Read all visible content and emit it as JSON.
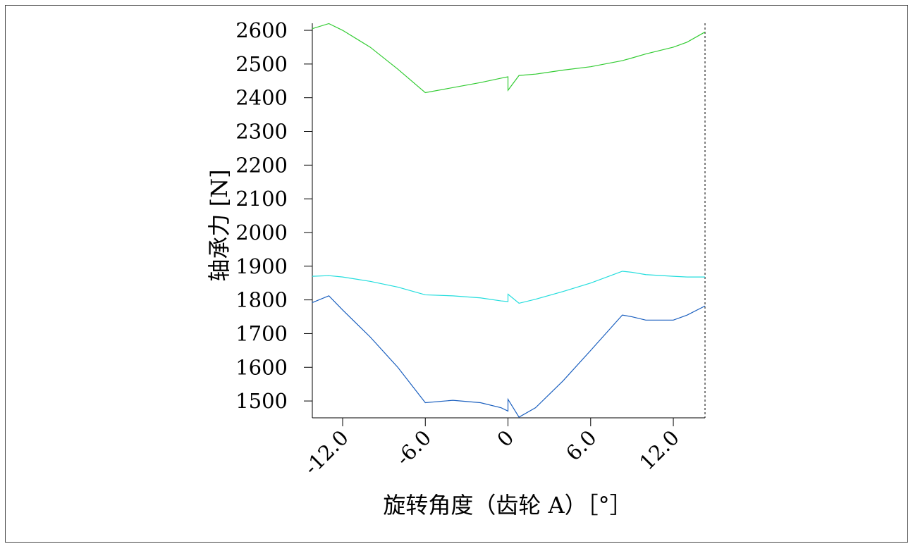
{
  "chart_data": {
    "type": "line",
    "x_label": "旋转角度（齿轮 A）［°］",
    "y_label": "轴承力 [N]",
    "x": [
      -14.2,
      -13,
      -12,
      -10,
      -8,
      -6,
      -4,
      -2,
      -0.5,
      0,
      0,
      0.8,
      2,
      4,
      6,
      8.3,
      9,
      10,
      12,
      13,
      14.3
    ],
    "series": [
      {
        "color": "#33cc33",
        "values": [
          2605,
          2620,
          2600,
          2550,
          2485,
          2415,
          2430,
          2445,
          2458,
          2462,
          2422,
          2466,
          2470,
          2482,
          2492,
          2510,
          2518,
          2530,
          2550,
          2565,
          2595
        ]
      },
      {
        "color": "#22dddd",
        "values": [
          1870,
          1872,
          1868,
          1855,
          1838,
          1815,
          1812,
          1806,
          1797,
          1795,
          1817,
          1790,
          1802,
          1825,
          1850,
          1885,
          1882,
          1875,
          1870,
          1868,
          1868
        ]
      },
      {
        "color": "#1a5fbf",
        "values": [
          1792,
          1812,
          1770,
          1690,
          1600,
          1495,
          1502,
          1495,
          1480,
          1470,
          1505,
          1452,
          1480,
          1560,
          1650,
          1755,
          1750,
          1740,
          1740,
          1755,
          1782
        ]
      }
    ],
    "xlim": [
      -14.2,
      14.3
    ],
    "ylim": [
      1450,
      2621
    ],
    "xticks": [
      {
        "value": -12,
        "label": "-12.0"
      },
      {
        "value": -6,
        "label": "-6.0"
      },
      0,
      {
        "value": 6,
        "label": "6.0"
      },
      {
        "value": 12,
        "label": "12.0"
      }
    ],
    "yticks": [
      1500,
      1600,
      1700,
      1800,
      1900,
      2000,
      2100,
      2200,
      2300,
      2400,
      2500,
      2600
    ]
  }
}
